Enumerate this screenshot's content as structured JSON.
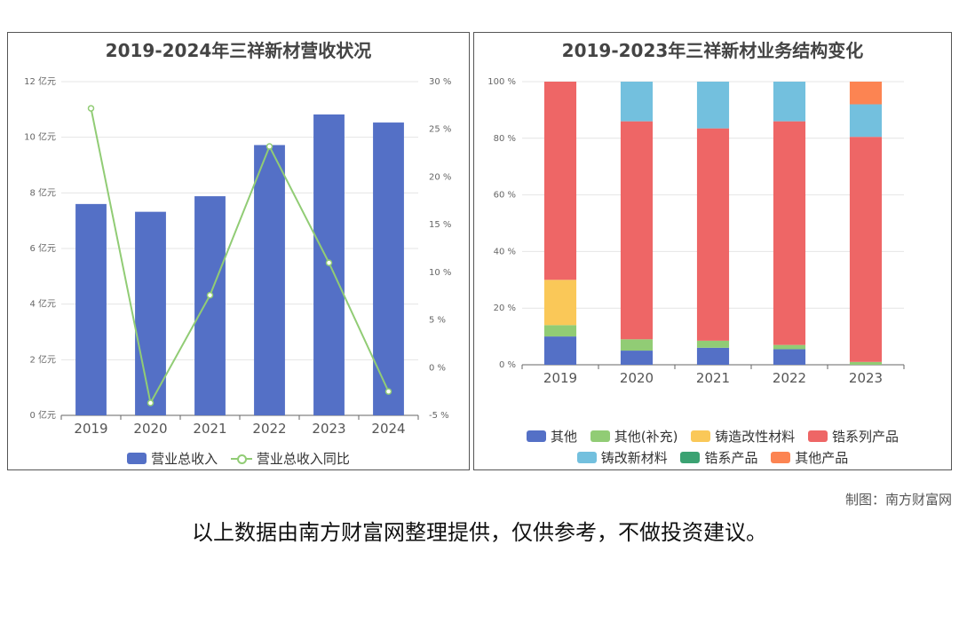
{
  "footer": {
    "credit": "制图：南方财富网",
    "disclaimer": "以上数据由南方财富网整理提供，仅供参考，不做投资建议。"
  },
  "chart_data": [
    {
      "type": "bar",
      "title": "2019-2024年三祥新材营收状况",
      "categories": [
        "2019",
        "2020",
        "2021",
        "2022",
        "2023",
        "2024"
      ],
      "series": [
        {
          "name": "营业总收入",
          "kind": "bar",
          "axis": "left",
          "color": "#5470c6",
          "values": [
            7.6,
            7.32,
            7.88,
            9.72,
            10.82,
            10.53
          ]
        },
        {
          "name": "营业总收入同比",
          "kind": "line",
          "axis": "right",
          "color": "#91cc75",
          "values": [
            27.2,
            -3.7,
            7.6,
            23.2,
            11.0,
            -2.5
          ]
        }
      ],
      "left_axis": {
        "min": 0,
        "max": 12,
        "ticks": [
          "0 亿元",
          "2 亿元",
          "4 亿元",
          "6 亿元",
          "8 亿元",
          "10 亿元",
          "12 亿元"
        ]
      },
      "right_axis": {
        "min": -5,
        "max": 30,
        "ticks": [
          "-5 %",
          "0 %",
          "5 %",
          "10 %",
          "15 %",
          "20 %",
          "25 %",
          "30 %"
        ]
      },
      "grid": true,
      "legend_position": "bottom"
    },
    {
      "type": "bar",
      "stacked": true,
      "title": "2019-2023年三祥新材业务结构变化",
      "categories": [
        "2019",
        "2020",
        "2021",
        "2022",
        "2023"
      ],
      "series": [
        {
          "name": "其他",
          "color": "#5470c6",
          "values": [
            10,
            5,
            6,
            5.5,
            0
          ]
        },
        {
          "name": "其他(补充)",
          "color": "#91cc75",
          "values": [
            4,
            4,
            2.5,
            1.5,
            1
          ]
        },
        {
          "name": "铸造改性材料",
          "color": "#fac858",
          "values": [
            16,
            0,
            0,
            0,
            0
          ]
        },
        {
          "name": "锆系列产品",
          "color": "#ee6666",
          "values": [
            70,
            77,
            75,
            79,
            79.5
          ]
        },
        {
          "name": "铸改新材料",
          "color": "#73c0de",
          "values": [
            0,
            14,
            16.5,
            14,
            11.5
          ]
        },
        {
          "name": "锆系产品",
          "color": "#3ba272",
          "values": [
            0,
            0,
            0,
            0,
            0
          ]
        },
        {
          "name": "其他产品",
          "color": "#fc8452",
          "values": [
            0,
            0,
            0,
            0,
            8
          ]
        }
      ],
      "y_axis": {
        "min": 0,
        "max": 100,
        "ticks": [
          "0 %",
          "20 %",
          "40 %",
          "60 %",
          "80 %",
          "100 %"
        ]
      },
      "grid": true,
      "legend_position": "bottom"
    }
  ]
}
